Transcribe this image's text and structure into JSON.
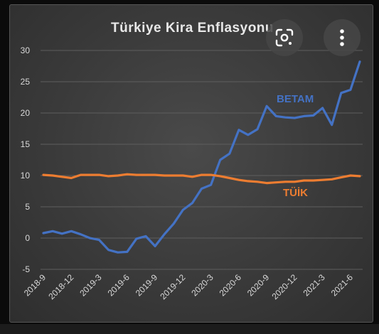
{
  "overlay": {
    "lens_icon": "google-lens-icon",
    "more_icon": "more-vert-icon"
  },
  "chart_data": {
    "type": "line",
    "title": "Türkiye Kira Enflasyonu",
    "xlabel": "",
    "ylabel": "",
    "ylim": [
      -5,
      30
    ],
    "yticks": [
      -5,
      0,
      5,
      10,
      15,
      20,
      25,
      30
    ],
    "grid": true,
    "background": "dark",
    "x": [
      "2018-9",
      "2018-10",
      "2018-11",
      "2018-12",
      "2019-1",
      "2019-2",
      "2019-3",
      "2019-4",
      "2019-5",
      "2019-6",
      "2019-7",
      "2019-8",
      "2019-9",
      "2019-10",
      "2019-11",
      "2019-12",
      "2020-1",
      "2020-2",
      "2020-3",
      "2020-4",
      "2020-5",
      "2020-6",
      "2020-7",
      "2020-8",
      "2020-9",
      "2020-10",
      "2020-11",
      "2020-12",
      "2021-1",
      "2021-2",
      "2021-3",
      "2021-4",
      "2021-5",
      "2021-6",
      "2021-7"
    ],
    "xticks": [
      "2018-9",
      "2018-12",
      "2019-3",
      "2019-6",
      "2019-9",
      "2019-12",
      "2020-3",
      "2020-6",
      "2020-9",
      "2020-12",
      "2021-3",
      "2021-6"
    ],
    "series": [
      {
        "name": "BETAM",
        "color": "#4472C4",
        "values": [
          0.8,
          1.1,
          0.7,
          1.1,
          0.6,
          0.0,
          -0.3,
          -1.9,
          -2.3,
          -2.2,
          -0.1,
          0.3,
          -1.3,
          0.6,
          2.3,
          4.5,
          5.6,
          7.9,
          8.5,
          12.5,
          13.5,
          17.3,
          16.5,
          17.4,
          21.1,
          19.5,
          19.3,
          19.2,
          19.5,
          19.6,
          20.8,
          18.1,
          23.2,
          23.7,
          28.2
        ],
        "label_color": "#4472C4"
      },
      {
        "name": "TÜİK",
        "color": "#ED7D31",
        "values": [
          10.1,
          10.0,
          9.8,
          9.6,
          10.1,
          10.1,
          10.1,
          9.9,
          10.0,
          10.2,
          10.1,
          10.1,
          10.1,
          10.0,
          10.0,
          10.0,
          9.8,
          10.1,
          10.1,
          9.9,
          9.6,
          9.3,
          9.1,
          9.0,
          8.8,
          8.9,
          9.0,
          9.0,
          9.2,
          9.2,
          9.3,
          9.4,
          9.7,
          10.0,
          9.9
        ],
        "label_color": "#ED7D31"
      }
    ]
  }
}
